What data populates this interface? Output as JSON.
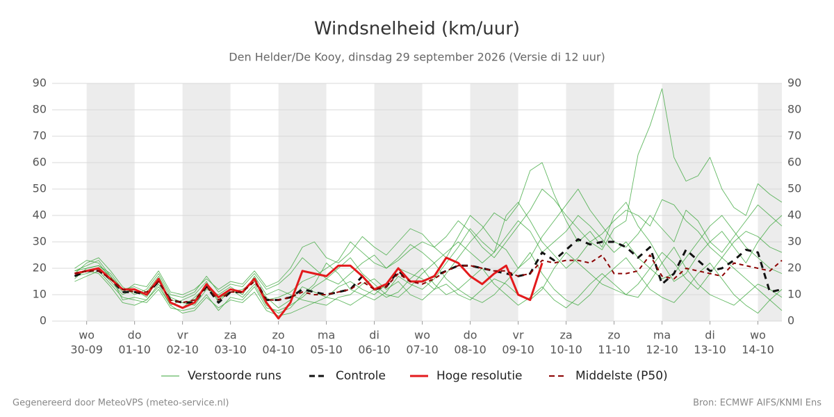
{
  "chart_data": {
    "type": "line",
    "title": "Windsnelheid (km/uur)",
    "subtitle": "Den Helder/De Kooy, dinsdag 29 september 2026 (Versie di 12 uur)",
    "footer_left": "Gegenereerd door MeteoVPS (meteo-service.nl)",
    "footer_right": "Bron: ECMWF AIFS/KNMI Ens",
    "x": [
      -0.25,
      0,
      0.25,
      0.5,
      0.75,
      1,
      1.25,
      1.5,
      1.75,
      2,
      2.25,
      2.5,
      2.75,
      3,
      3.25,
      3.5,
      3.75,
      4,
      4.25,
      4.5,
      4.75,
      5,
      5.25,
      5.5,
      5.75,
      6,
      6.25,
      6.5,
      6.75,
      7,
      7.25,
      7.5,
      7.75,
      8,
      8.25,
      8.5,
      8.75,
      9,
      9.25,
      9.5,
      9.75,
      10,
      10.25,
      10.5,
      10.75,
      11,
      11.25,
      11.5,
      11.75,
      12,
      12.25,
      12.5,
      12.75,
      13,
      13.25,
      13.5,
      13.75,
      14,
      14.25,
      14.5
    ],
    "xlim": [
      -0.72,
      14.5
    ],
    "xticks": [
      {
        "value": 0,
        "label": "wo",
        "date": "30-09"
      },
      {
        "value": 1,
        "label": "do",
        "date": "01-10"
      },
      {
        "value": 2,
        "label": "vr",
        "date": "02-10"
      },
      {
        "value": 3,
        "label": "za",
        "date": "03-10"
      },
      {
        "value": 4,
        "label": "zo",
        "date": "04-10"
      },
      {
        "value": 5,
        "label": "ma",
        "date": "05-10"
      },
      {
        "value": 6,
        "label": "di",
        "date": "06-10"
      },
      {
        "value": 7,
        "label": "wo",
        "date": "07-10"
      },
      {
        "value": 8,
        "label": "do",
        "date": "08-10"
      },
      {
        "value": 9,
        "label": "vr",
        "date": "09-10"
      },
      {
        "value": 10,
        "label": "za",
        "date": "10-10"
      },
      {
        "value": 11,
        "label": "zo",
        "date": "11-10"
      },
      {
        "value": 12,
        "label": "ma",
        "date": "12-10"
      },
      {
        "value": 13,
        "label": "di",
        "date": "13-10"
      },
      {
        "value": 14,
        "label": "wo",
        "date": "14-10"
      }
    ],
    "ylim": [
      0,
      90
    ],
    "yticks": [
      0,
      10,
      20,
      30,
      40,
      50,
      60,
      70,
      80,
      90
    ],
    "y2lim": [
      0,
      90
    ],
    "y2ticks": [
      0,
      10,
      20,
      30,
      40,
      50,
      60,
      70,
      80,
      90
    ],
    "grid": true,
    "ensemble": {
      "name": "Verstoorde runs",
      "color": "#3aa63a",
      "members": [
        [
          19,
          21,
          23,
          17,
          8,
          9,
          8,
          14,
          6,
          8,
          10,
          15,
          7,
          12,
          9,
          14,
          6,
          3,
          5,
          10,
          14,
          22,
          18,
          12,
          10,
          8,
          11,
          17,
          14,
          12,
          16,
          22,
          28,
          35,
          30,
          26,
          40,
          45,
          38,
          30,
          25,
          20,
          24,
          30,
          27,
          35,
          38,
          63,
          74,
          88,
          62,
          53,
          55,
          62,
          50,
          43,
          40,
          52,
          48,
          45
        ],
        [
          17,
          18,
          20,
          15,
          10,
          12,
          9,
          16,
          7,
          5,
          9,
          13,
          9,
          11,
          12,
          15,
          9,
          5,
          8,
          13,
          11,
          9,
          13,
          15,
          12,
          10,
          14,
          20,
          18,
          16,
          12,
          18,
          24,
          30,
          35,
          41,
          38,
          44,
          57,
          60,
          48,
          38,
          30,
          34,
          28,
          40,
          45,
          36,
          30,
          22,
          15,
          18,
          25,
          30,
          34,
          28,
          22,
          30,
          36,
          40
        ],
        [
          16,
          20,
          21,
          18,
          12,
          13,
          11,
          17,
          9,
          7,
          6,
          12,
          10,
          13,
          10,
          17,
          10,
          12,
          10,
          8,
          7,
          6,
          9,
          10,
          14,
          16,
          12,
          15,
          10,
          8,
          12,
          14,
          10,
          8,
          12,
          16,
          14,
          10,
          8,
          12,
          20,
          26,
          22,
          18,
          14,
          12,
          10,
          9,
          15,
          22,
          28,
          20,
          14,
          10,
          8,
          6,
          10,
          14,
          12,
          9
        ],
        [
          18,
          22,
          24,
          19,
          13,
          10,
          12,
          18,
          10,
          9,
          11,
          17,
          11,
          14,
          13,
          18,
          12,
          14,
          18,
          24,
          20,
          16,
          14,
          18,
          22,
          25,
          20,
          23,
          27,
          30,
          28,
          24,
          32,
          40,
          36,
          30,
          27,
          20,
          24,
          32,
          38,
          44,
          50,
          42,
          36,
          30,
          28,
          33,
          40,
          35,
          30,
          42,
          38,
          30,
          26,
          32,
          38,
          44,
          40,
          36
        ],
        [
          15,
          17,
          19,
          14,
          9,
          8,
          7,
          12,
          5,
          4,
          5,
          10,
          4,
          9,
          8,
          13,
          5,
          4,
          6,
          9,
          13,
          16,
          20,
          24,
          18,
          14,
          10,
          9,
          13,
          18,
          22,
          16,
          12,
          9,
          7,
          10,
          15,
          20,
          26,
          18,
          12,
          8,
          6,
          10,
          16,
          20,
          24,
          18,
          12,
          9,
          7,
          12,
          18,
          22,
          16,
          10,
          6,
          3,
          8,
          12
        ],
        [
          20,
          23,
          22,
          16,
          11,
          14,
          13,
          19,
          11,
          10,
          12,
          16,
          12,
          15,
          14,
          19,
          13,
          15,
          20,
          28,
          30,
          24,
          22,
          26,
          32,
          28,
          25,
          30,
          35,
          33,
          28,
          32,
          38,
          34,
          28,
          24,
          30,
          36,
          42,
          50,
          46,
          40,
          35,
          30,
          33,
          38,
          42,
          40,
          36,
          46,
          44,
          38,
          34,
          28,
          24,
          30,
          34,
          32,
          28,
          26
        ],
        [
          17,
          19,
          18,
          13,
          7,
          6,
          8,
          13,
          6,
          3,
          4,
          9,
          5,
          8,
          7,
          11,
          4,
          2,
          3,
          5,
          7,
          9,
          8,
          6,
          9,
          12,
          9,
          11,
          16,
          20,
          14,
          10,
          12,
          16,
          20,
          14,
          10,
          6,
          9,
          13,
          8,
          5,
          9,
          14,
          18,
          14,
          10,
          14,
          20,
          26,
          22,
          16,
          12,
          18,
          24,
          20,
          16,
          12,
          8,
          4
        ],
        [
          19,
          20,
          21,
          17,
          12,
          11,
          10,
          15,
          8,
          7,
          8,
          14,
          8,
          12,
          11,
          16,
          8,
          9,
          11,
          15,
          17,
          20,
          23,
          30,
          26,
          22,
          20,
          24,
          29,
          26,
          22,
          26,
          30,
          26,
          22,
          26,
          32,
          38,
          34,
          26,
          30,
          34,
          40,
          36,
          31,
          26,
          30,
          24,
          20,
          16,
          18,
          24,
          30,
          36,
          40,
          34,
          28,
          24,
          20,
          18
        ]
      ]
    },
    "series": [
      {
        "name": "Controle",
        "color": "#111111",
        "dashed": true,
        "width": 3,
        "values": [
          17,
          19,
          19,
          16,
          11,
          11,
          10,
          15,
          8,
          7,
          7,
          13,
          7,
          11,
          11,
          16,
          8,
          8,
          9,
          12,
          11,
          10,
          11,
          12,
          17,
          12,
          13,
          19,
          15,
          15,
          17,
          19,
          21,
          21,
          20,
          19,
          18,
          17,
          18,
          26,
          23,
          27,
          31,
          29,
          30,
          30,
          28,
          24,
          28,
          14,
          18,
          27,
          23,
          19,
          20,
          23,
          27,
          26,
          11,
          12
        ]
      },
      {
        "name": "Hoge resolutie",
        "color": "#e31a1c",
        "dashed": false,
        "width": 3,
        "values": [
          18,
          19,
          20,
          16,
          12,
          12,
          10,
          16,
          7,
          5,
          7,
          14,
          9,
          12,
          11,
          16,
          7,
          1,
          7,
          19,
          18,
          17,
          21,
          21,
          17,
          12,
          14,
          20,
          15,
          15,
          17,
          24,
          22,
          17,
          14,
          18,
          21,
          10,
          8,
          22,
          null,
          null,
          null,
          null,
          null,
          null,
          null,
          null,
          null,
          null,
          null,
          null,
          null,
          null,
          null,
          null,
          null,
          null,
          null,
          null
        ]
      },
      {
        "name": "Middelste (P50)",
        "color": "#8b0000",
        "dashed": true,
        "width": 2,
        "values": [
          18,
          19,
          19,
          16,
          12,
          11,
          11,
          15,
          8,
          7,
          8,
          13,
          8,
          11,
          11,
          15,
          8,
          8,
          9,
          11,
          10,
          10,
          11,
          12,
          15,
          12,
          13,
          18,
          15,
          14,
          16,
          19,
          21,
          21,
          20,
          19,
          19,
          17,
          18,
          23,
          22,
          23,
          23,
          22,
          25,
          18,
          18,
          19,
          25,
          17,
          16,
          20,
          19,
          18,
          17,
          22,
          21,
          20,
          19,
          23
        ]
      }
    ]
  }
}
